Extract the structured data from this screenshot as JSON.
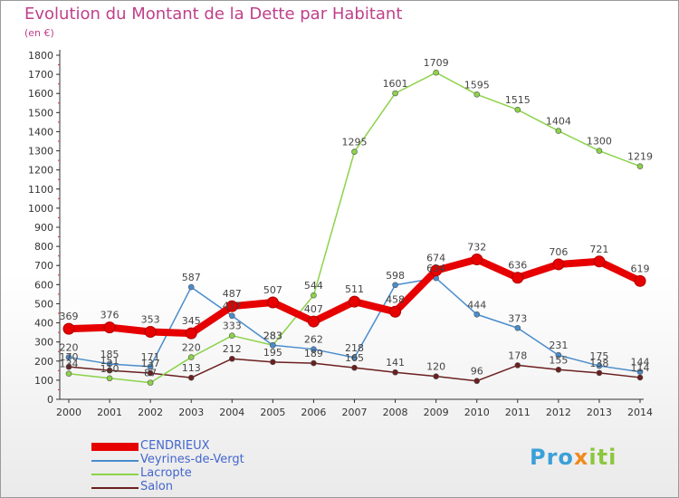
{
  "chart_data": {
    "type": "line",
    "title": "Evolution du Montant de la Dette par Habitant",
    "subtitle": "(en €)",
    "x": [
      "2000",
      "2001",
      "2002",
      "2003",
      "2004",
      "2005",
      "2006",
      "2007",
      "2008",
      "2009",
      "2010",
      "2011",
      "2012",
      "2013",
      "2014"
    ],
    "ylim": [
      0,
      1800
    ],
    "yticks": [
      0,
      100,
      200,
      300,
      400,
      500,
      600,
      700,
      800,
      900,
      1000,
      1100,
      1200,
      1300,
      1400,
      1500,
      1600,
      1700,
      1800
    ],
    "grid": false,
    "legend_position": "bottom-left",
    "series": [
      {
        "name": "Salon",
        "color": "#6b1f1f",
        "values": [
          170,
          151,
          137,
          113,
          212,
          195,
          189,
          165,
          141,
          120,
          96,
          178,
          155,
          138,
          114
        ]
      },
      {
        "name": "Lacropte",
        "color": "#8cd24a",
        "values": [
          134,
          110,
          87,
          220,
          333,
          283,
          544,
          1295,
          1601,
          1709,
          1595,
          1515,
          1404,
          1300,
          1219
        ]
      },
      {
        "name": "Veyrines-de-Vergt",
        "color": "#4a8ccc",
        "values": [
          220,
          185,
          171,
          587,
          437,
          283,
          262,
          218,
          598,
          634,
          444,
          373,
          231,
          175,
          144
        ]
      },
      {
        "name": "CENDRIEUX",
        "color": "#e60000",
        "values": [
          369,
          376,
          353,
          345,
          487,
          507,
          407,
          511,
          458,
          674,
          732,
          636,
          706,
          721,
          619
        ]
      }
    ]
  },
  "legend": {
    "items": [
      "CENDRIEUX",
      "Veyrines-de-Vergt",
      "Lacropte",
      "Salon"
    ]
  },
  "logo": {
    "part1": "Pro",
    "part2": "x",
    "part3": "iti"
  }
}
